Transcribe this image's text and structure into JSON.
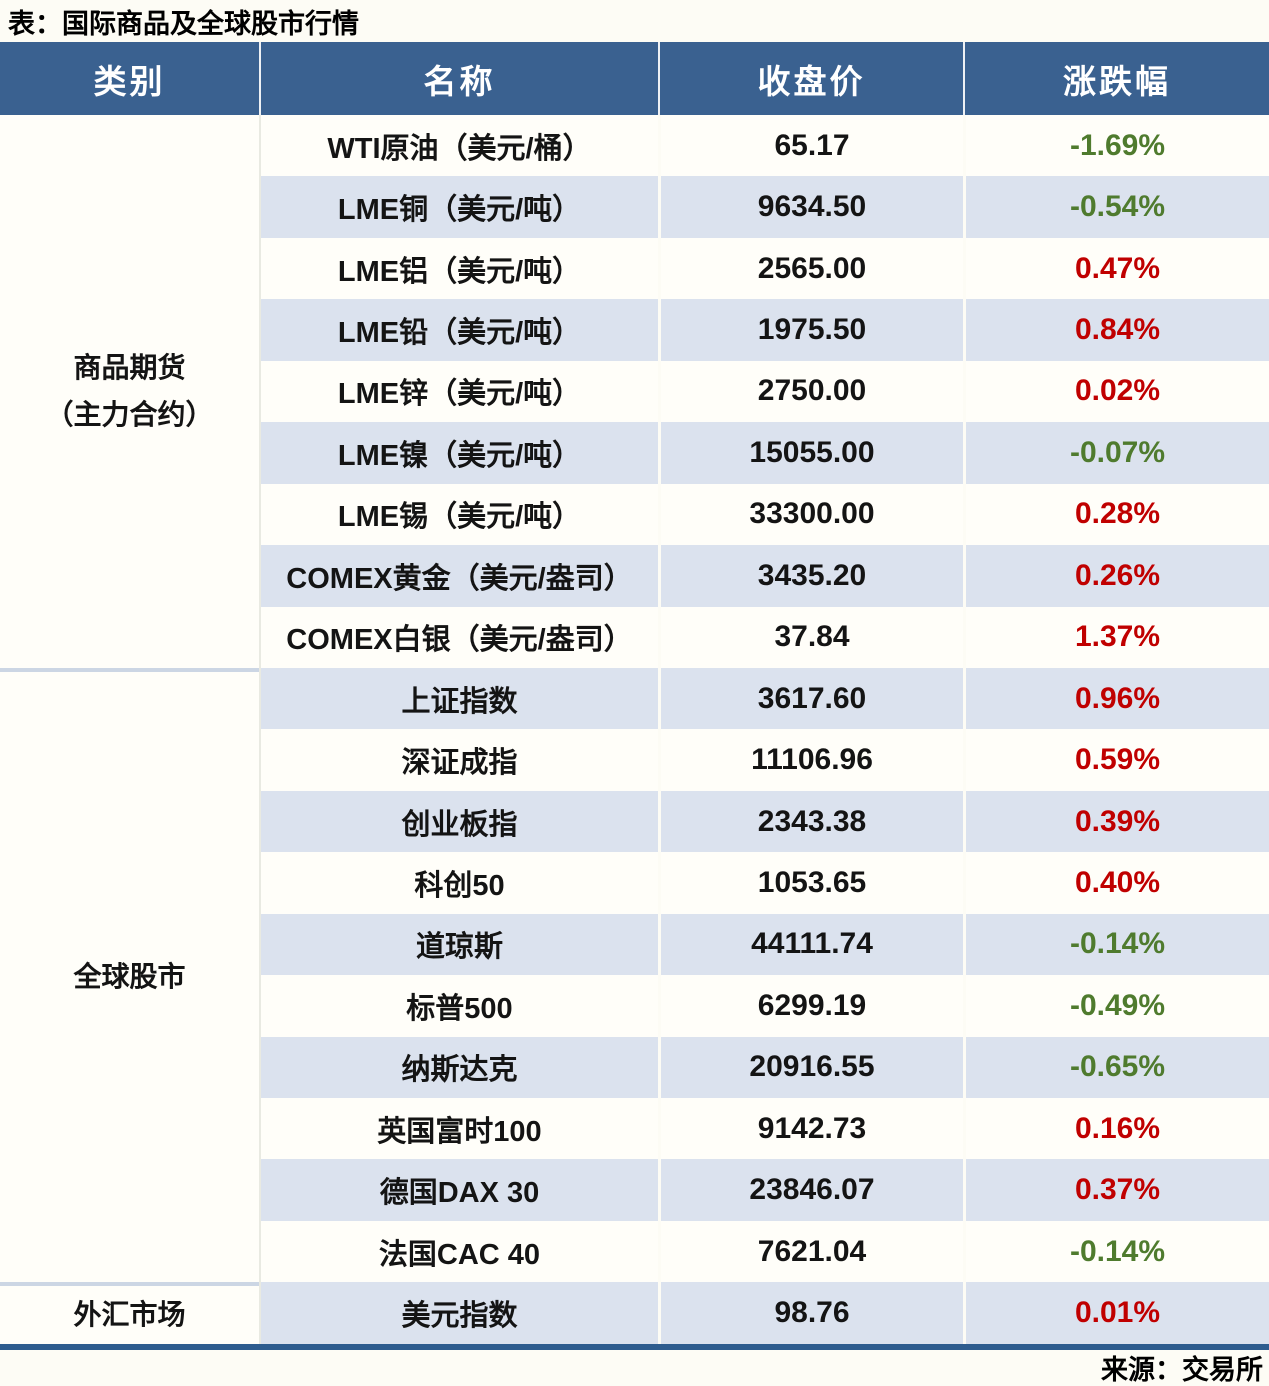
{
  "chart_data": {
    "type": "table",
    "title": "表：国际商品及全球股市行情",
    "source": "来源：交易所",
    "columns": [
      "类别",
      "名称",
      "收盘价",
      "涨跌幅"
    ],
    "up_color": "#c00000",
    "down_color": "#4f7b2e",
    "header_bg": "#3a6190",
    "stripe_color": "#dbe2ee",
    "sections": [
      {
        "category": "商品期货（主力合约）",
        "category_lines": [
          "商品期货",
          "（主力合约）"
        ],
        "rows": [
          {
            "name": "WTI原油（美元/桶）",
            "close": "65.17",
            "change": "-1.69%",
            "dir": "down"
          },
          {
            "name": "LME铜（美元/吨）",
            "close": "9634.50",
            "change": "-0.54%",
            "dir": "down"
          },
          {
            "name": "LME铝（美元/吨）",
            "close": "2565.00",
            "change": "0.47%",
            "dir": "up"
          },
          {
            "name": "LME铅（美元/吨）",
            "close": "1975.50",
            "change": "0.84%",
            "dir": "up"
          },
          {
            "name": "LME锌（美元/吨）",
            "close": "2750.00",
            "change": "0.02%",
            "dir": "up"
          },
          {
            "name": "LME镍（美元/吨）",
            "close": "15055.00",
            "change": "-0.07%",
            "dir": "down"
          },
          {
            "name": "LME锡（美元/吨）",
            "close": "33300.00",
            "change": "0.28%",
            "dir": "up"
          },
          {
            "name": "COMEX黄金（美元/盎司）",
            "close": "3435.20",
            "change": "0.26%",
            "dir": "up"
          },
          {
            "name": "COMEX白银（美元/盎司）",
            "close": "37.84",
            "change": "1.37%",
            "dir": "up"
          }
        ]
      },
      {
        "category": "全球股市",
        "category_lines": [
          "全球股市"
        ],
        "rows": [
          {
            "name": "上证指数",
            "close": "3617.60",
            "change": "0.96%",
            "dir": "up"
          },
          {
            "name": "深证成指",
            "close": "11106.96",
            "change": "0.59%",
            "dir": "up"
          },
          {
            "name": "创业板指",
            "close": "2343.38",
            "change": "0.39%",
            "dir": "up"
          },
          {
            "name": "科创50",
            "close": "1053.65",
            "change": "0.40%",
            "dir": "up"
          },
          {
            "name": "道琼斯",
            "close": "44111.74",
            "change": "-0.14%",
            "dir": "down"
          },
          {
            "name": "标普500",
            "close": "6299.19",
            "change": "-0.49%",
            "dir": "down"
          },
          {
            "name": "纳斯达克",
            "close": "20916.55",
            "change": "-0.65%",
            "dir": "down"
          },
          {
            "name": "英国富时100",
            "close": "9142.73",
            "change": "0.16%",
            "dir": "up"
          },
          {
            "name": "德国DAX 30",
            "close": "23846.07",
            "change": "0.37%",
            "dir": "up"
          },
          {
            "name": "法国CAC 40",
            "close": "7621.04",
            "change": "-0.14%",
            "dir": "down"
          }
        ]
      },
      {
        "category": "外汇市场",
        "category_lines": [
          "外汇市场"
        ],
        "rows": [
          {
            "name": "美元指数",
            "close": "98.76",
            "change": "0.01%",
            "dir": "up"
          }
        ]
      }
    ]
  }
}
